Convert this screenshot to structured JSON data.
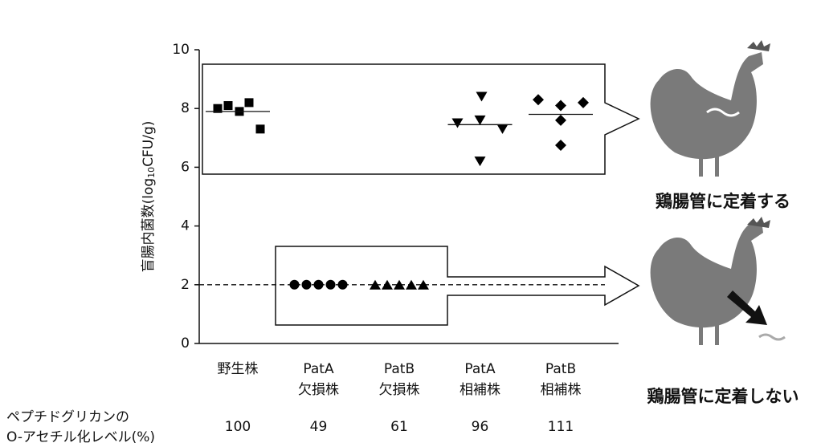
{
  "chart_data": {
    "type": "dotplot",
    "y_label_parts": [
      "盲腸内菌数(log",
      "10",
      "CFU/g)"
    ],
    "ylim": [
      0,
      10
    ],
    "yticks": [
      0,
      2,
      4,
      6,
      8,
      10
    ],
    "categories": [
      [
        "野生株"
      ],
      [
        "PatA",
        "欠損株"
      ],
      [
        "PatB",
        "欠損株"
      ],
      [
        "PatA",
        "相補株"
      ],
      [
        "PatB",
        "相補株"
      ]
    ],
    "groups": [
      {
        "marker": "square",
        "values": [
          8.0,
          8.1,
          7.9,
          8.2,
          7.3
        ],
        "mean": 7.9
      },
      {
        "marker": "circle",
        "values": [
          2.0,
          2.0,
          2.0,
          2.0,
          2.0
        ]
      },
      {
        "marker": "triangle",
        "values": [
          2.0,
          2.0,
          2.0,
          2.0,
          2.0
        ]
      },
      {
        "marker": "triangle-down",
        "values": [
          7.5,
          8.4,
          7.6,
          7.3,
          6.2
        ],
        "mean": 7.45
      },
      {
        "marker": "diamond",
        "values": [
          8.3,
          7.6,
          8.1,
          6.75,
          8.2
        ],
        "mean": 7.8
      }
    ],
    "color": "#000000",
    "detection_limit": 2,
    "acetylation": {
      "label": [
        "ペプチドグリカンの",
        "O-アセチル化レベル(%)"
      ],
      "values": [
        100,
        49,
        61,
        96,
        111
      ]
    },
    "outcomes": [
      "鶏腸管に定着する",
      "鶏腸管に定着しない"
    ]
  }
}
